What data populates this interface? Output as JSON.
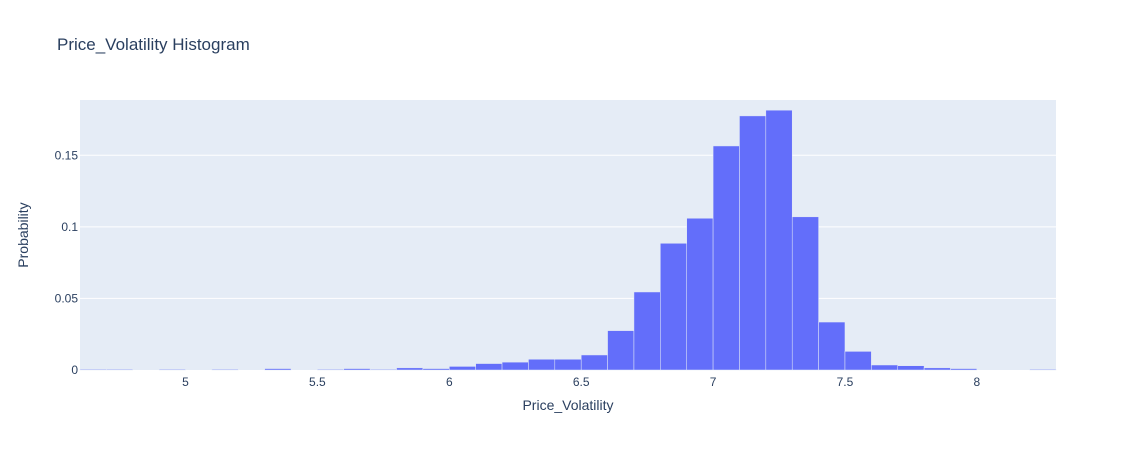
{
  "chart_data": {
    "type": "bar",
    "title": "Price_Volatility Histogram",
    "xlabel": "Price_Volatility",
    "ylabel": "Probability",
    "xlim": [
      4.6,
      8.3
    ],
    "ylim": [
      0,
      0.1886
    ],
    "bin_width": 0.1,
    "x_ticks": [
      5,
      5.5,
      6,
      6.5,
      7,
      7.5,
      8
    ],
    "x_tick_labels": [
      "5",
      "5.5",
      "6",
      "6.5",
      "7",
      "7.5",
      "8"
    ],
    "y_ticks": [
      0,
      0.05,
      0.1,
      0.15
    ],
    "y_tick_labels": [
      "0",
      "0.05",
      "0.1",
      "0.15"
    ],
    "grid": true,
    "bar_color": "#636efa",
    "plot_background": "#e5ecf6",
    "bins": [
      {
        "x0": 4.6,
        "x1": 4.7,
        "value": 0.0005
      },
      {
        "x0": 4.7,
        "x1": 4.8,
        "value": 0.0005
      },
      {
        "x0": 4.9,
        "x1": 5.0,
        "value": 0.0005
      },
      {
        "x0": 5.1,
        "x1": 5.2,
        "value": 0.0005
      },
      {
        "x0": 5.3,
        "x1": 5.4,
        "value": 0.001
      },
      {
        "x0": 5.5,
        "x1": 5.6,
        "value": 0.0005
      },
      {
        "x0": 5.6,
        "x1": 5.7,
        "value": 0.001
      },
      {
        "x0": 5.7,
        "x1": 5.8,
        "value": 0.0005
      },
      {
        "x0": 5.8,
        "x1": 5.9,
        "value": 0.0015
      },
      {
        "x0": 5.9,
        "x1": 6.0,
        "value": 0.001
      },
      {
        "x0": 6.0,
        "x1": 6.1,
        "value": 0.0025
      },
      {
        "x0": 6.1,
        "x1": 6.2,
        "value": 0.0045
      },
      {
        "x0": 6.2,
        "x1": 6.3,
        "value": 0.0055
      },
      {
        "x0": 6.3,
        "x1": 6.4,
        "value": 0.0075
      },
      {
        "x0": 6.4,
        "x1": 6.5,
        "value": 0.0075
      },
      {
        "x0": 6.5,
        "x1": 6.6,
        "value": 0.0105
      },
      {
        "x0": 6.6,
        "x1": 6.7,
        "value": 0.0275
      },
      {
        "x0": 6.7,
        "x1": 6.8,
        "value": 0.0545
      },
      {
        "x0": 6.8,
        "x1": 6.9,
        "value": 0.0885
      },
      {
        "x0": 6.9,
        "x1": 7.0,
        "value": 0.106
      },
      {
        "x0": 7.0,
        "x1": 7.1,
        "value": 0.1565
      },
      {
        "x0": 7.1,
        "x1": 7.2,
        "value": 0.1775
      },
      {
        "x0": 7.2,
        "x1": 7.3,
        "value": 0.1815
      },
      {
        "x0": 7.3,
        "x1": 7.4,
        "value": 0.107
      },
      {
        "x0": 7.4,
        "x1": 7.5,
        "value": 0.0335
      },
      {
        "x0": 7.5,
        "x1": 7.6,
        "value": 0.013
      },
      {
        "x0": 7.6,
        "x1": 7.7,
        "value": 0.0035
      },
      {
        "x0": 7.7,
        "x1": 7.8,
        "value": 0.003
      },
      {
        "x0": 7.8,
        "x1": 7.9,
        "value": 0.0015
      },
      {
        "x0": 7.9,
        "x1": 8.0,
        "value": 0.001
      },
      {
        "x0": 8.2,
        "x1": 8.3,
        "value": 0.0005
      }
    ]
  }
}
